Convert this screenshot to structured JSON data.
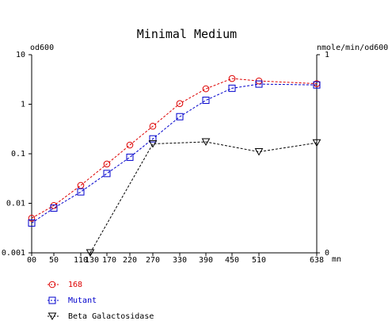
{
  "chart_data": {
    "type": "line",
    "title": "Minimal Medium",
    "left_axis_label": "od600",
    "right_axis_label": "nmole/min/od600",
    "x_unit_label": "mn",
    "x_ticks": [
      "00",
      "50",
      "110",
      "130",
      "170",
      "220",
      "270",
      "330",
      "390",
      "450",
      "510",
      "638"
    ],
    "left_y_scale": "log",
    "left_ylim": [
      0.001,
      10
    ],
    "left_y_ticks": [
      "10",
      "1",
      "0.1",
      "0.01",
      "0.001"
    ],
    "right_ylim": [
      0,
      1
    ],
    "right_y_ticks": [
      "1",
      "0"
    ],
    "grid": false,
    "legend_position": "bottom-left",
    "series": [
      {
        "name": "168",
        "axis": "left",
        "color": "#dd0000",
        "marker": "circle",
        "line_style": "dashed",
        "x": [
          "00",
          "50",
          "110",
          "170",
          "220",
          "270",
          "330",
          "390",
          "450",
          "510",
          "638"
        ],
        "y": [
          0.005,
          0.009,
          0.023,
          0.062,
          0.15,
          0.36,
          1.03,
          2.05,
          3.3,
          2.95,
          2.6
        ]
      },
      {
        "name": "Mutant",
        "axis": "left",
        "color": "#0000cc",
        "marker": "square",
        "line_style": "dashed",
        "x": [
          "00",
          "50",
          "110",
          "170",
          "220",
          "270",
          "330",
          "390",
          "450",
          "510",
          "638"
        ],
        "y": [
          0.004,
          0.008,
          0.017,
          0.04,
          0.085,
          0.2,
          0.56,
          1.2,
          2.1,
          2.55,
          2.45
        ]
      },
      {
        "name": "Beta Galactosidase",
        "axis": "right",
        "color": "#000000",
        "marker": "triangle-down",
        "line_style": "dashed",
        "x": [
          "130",
          "270",
          "390",
          "510",
          "638"
        ],
        "y": [
          0.0,
          0.55,
          0.56,
          0.51,
          0.555
        ]
      }
    ]
  }
}
